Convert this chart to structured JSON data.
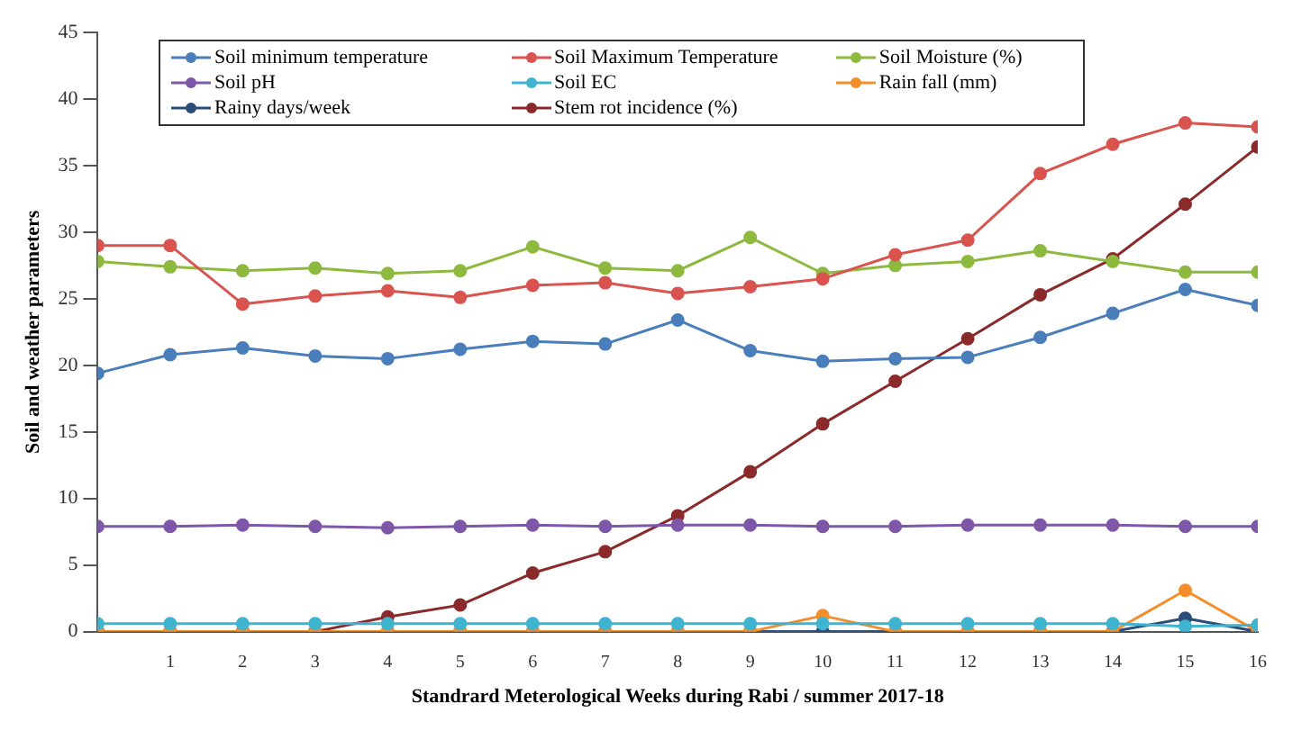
{
  "chart_data": {
    "type": "line",
    "xlabel": "Standrard Meterological Weeks during Rabi / summer 2017-18",
    "ylabel": "Soil and weather parameters",
    "x": [
      0,
      1,
      2,
      3,
      4,
      5,
      6,
      7,
      8,
      9,
      10,
      11,
      12,
      13,
      14,
      15,
      16
    ],
    "xlim": [
      0,
      16
    ],
    "xticks": [
      1,
      2,
      3,
      4,
      5,
      6,
      7,
      8,
      9,
      10,
      11,
      12,
      13,
      14,
      15,
      16
    ],
    "ylim": [
      0,
      45
    ],
    "yticks": [
      0,
      5,
      10,
      15,
      20,
      25,
      30,
      35,
      40,
      45
    ],
    "grid": false,
    "legend": "top",
    "marker": "circle",
    "line_style": "solid",
    "series": [
      {
        "name": "Soil minimum temperature",
        "color": "#4a7ebb",
        "values": [
          19.4,
          20.8,
          21.3,
          20.7,
          20.5,
          21.2,
          21.8,
          21.6,
          23.4,
          21.1,
          20.3,
          20.5,
          20.6,
          22.1,
          23.9,
          25.7,
          24.5
        ]
      },
      {
        "name": "Soil Maximum Temperature",
        "color": "#d9534f",
        "values": [
          29,
          29,
          24.6,
          25.2,
          25.6,
          25.1,
          26,
          26.2,
          25.4,
          25.9,
          26.5,
          28.3,
          29.4,
          34.4,
          36.6,
          38.2,
          37.9
        ]
      },
      {
        "name": "Soil Moisture (%)",
        "color": "#8db93e",
        "values": [
          27.8,
          27.4,
          27.1,
          27.3,
          26.9,
          27.1,
          28.9,
          27.3,
          27.1,
          29.6,
          26.9,
          27.5,
          27.8,
          28.6,
          27.8,
          27,
          27
        ]
      },
      {
        "name": "Soil pH",
        "color": "#7e57a8",
        "values": [
          7.9,
          7.9,
          8,
          7.9,
          7.8,
          7.9,
          8,
          7.9,
          8,
          8,
          7.9,
          7.9,
          8,
          8,
          8,
          7.9,
          7.9
        ]
      },
      {
        "name": "Soil EC",
        "color": "#3fb4d0",
        "values": [
          0.6,
          0.6,
          0.6,
          0.6,
          0.6,
          0.6,
          0.6,
          0.6,
          0.6,
          0.6,
          0.6,
          0.6,
          0.6,
          0.6,
          0.6,
          0.4,
          0.5
        ]
      },
      {
        "name": "Rain fall (mm)",
        "color": "#f28e2b",
        "values": [
          0,
          0,
          0,
          0,
          0,
          0,
          0,
          0,
          0,
          0,
          1.2,
          0,
          0,
          0,
          0,
          3.1,
          0
        ]
      },
      {
        "name": "Rainy days/week",
        "color": "#2a4d7a",
        "values": [
          0,
          0,
          0,
          0,
          0,
          0,
          0,
          0,
          0,
          0,
          0,
          0,
          0,
          0,
          0,
          1,
          0
        ]
      },
      {
        "name": "Stem rot incidence (%)",
        "color": "#8b2a2a",
        "values": [
          0,
          0,
          0,
          0,
          1.1,
          2,
          4.4,
          6,
          8.7,
          12,
          15.6,
          18.8,
          22,
          25.3,
          28,
          32.1,
          36.4
        ]
      }
    ]
  }
}
